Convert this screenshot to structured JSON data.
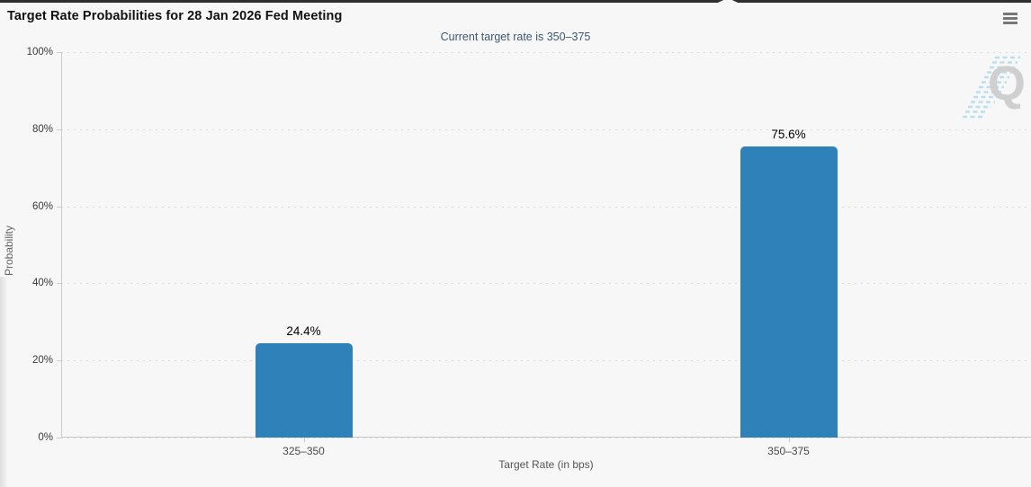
{
  "header": {
    "title": "Target Rate Probabilities for 28 Jan 2026 Fed Meeting",
    "subtitle": "Current target rate is 350–375",
    "export_menu_icon": "hamburger-menu-icon"
  },
  "chart_data": {
    "type": "bar",
    "title": "Target Rate Probabilities for 28 Jan 2026 Fed Meeting",
    "subtitle": "Current target rate is 350–375",
    "categories": [
      "325–350",
      "350–375"
    ],
    "values": [
      24.4,
      75.6
    ],
    "value_labels": [
      "24.4%",
      "75.6%"
    ],
    "xlabel": "Target Rate (in bps)",
    "ylabel": "Probability",
    "ylim": [
      0,
      100
    ],
    "ytick_labels": [
      "0%",
      "20%",
      "40%",
      "60%",
      "80%",
      "100%"
    ],
    "grid": true,
    "gridline_style": "dotted",
    "legend": "none",
    "bar_color": "#2e81b9",
    "watermark_letter": "Q",
    "watermark_color": "#cbcbcb",
    "watermark_stripe_color": "#b5dcee"
  },
  "colors": {
    "background": "#f7f7f7",
    "top_border": "#2f2f2f",
    "subtitle_text": "#3e576f",
    "axis_line": "#cccccc",
    "accent_bar": "#2e81b9"
  }
}
